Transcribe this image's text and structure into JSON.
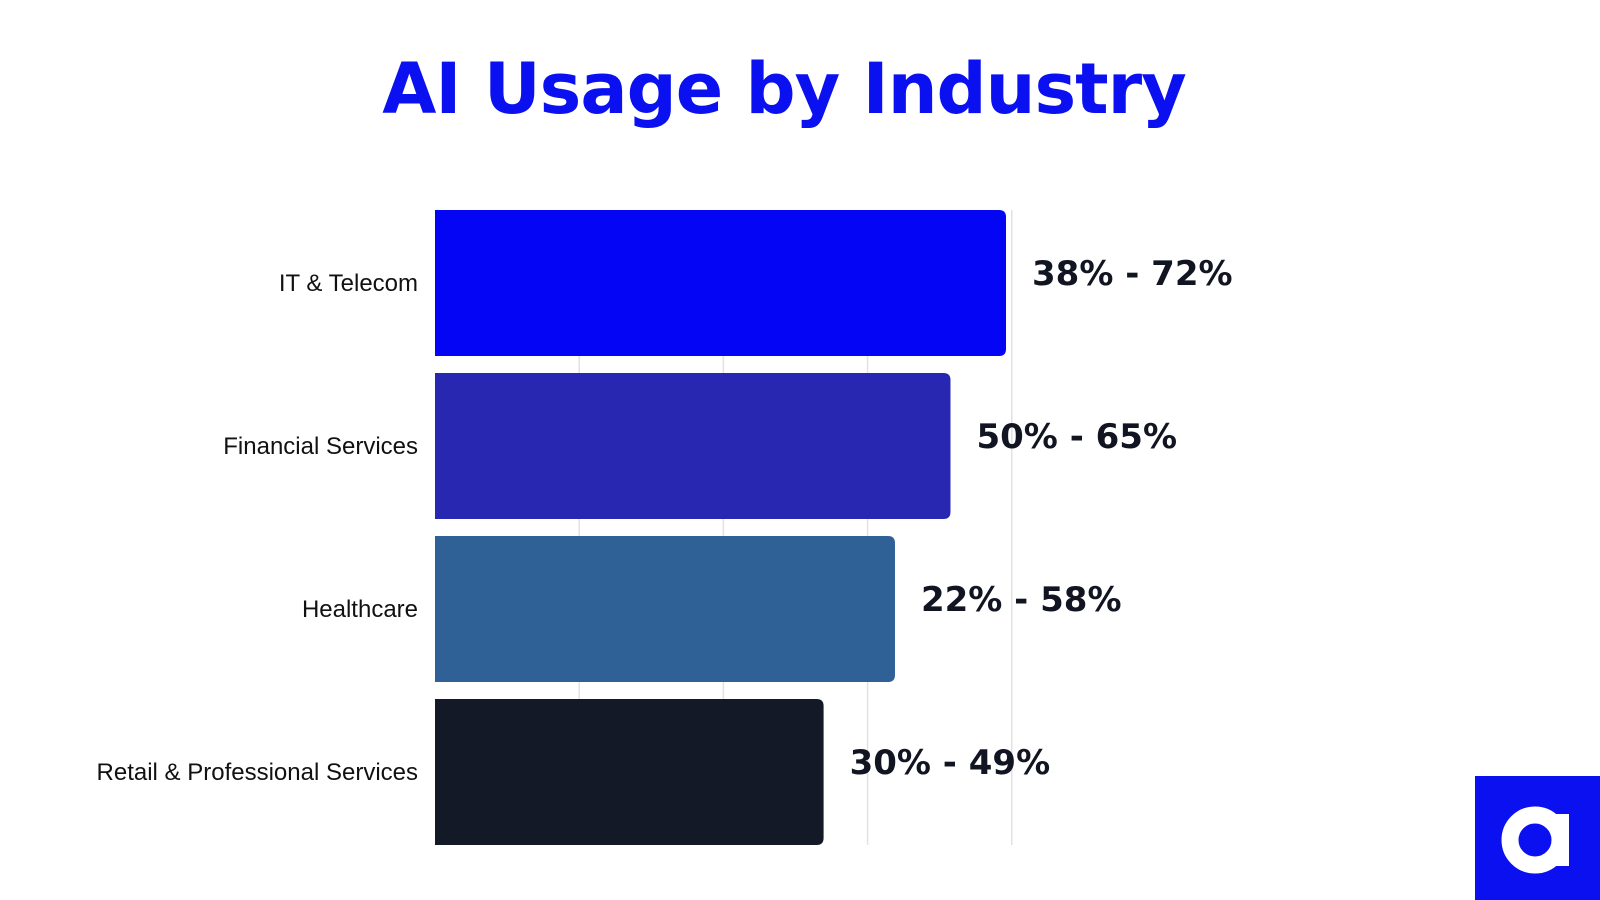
{
  "colors": {
    "title": "#0a10f0",
    "logo_background": "#0a10f0",
    "gridline": "#e2e2e2"
  },
  "logo": {
    "icon": "letter-a-logo-icon"
  },
  "chart_data": {
    "type": "bar",
    "orientation": "horizontal",
    "title": "AI Usage by Industry",
    "xlabel": "",
    "ylabel": "",
    "grid": true,
    "legend": "none",
    "xlim": [
      0,
      80
    ],
    "categories": [
      "IT & Telecom",
      "Financial Services",
      "Healthcare",
      "Retail & Professional Services"
    ],
    "ranges": [
      [
        38,
        72
      ],
      [
        50,
        65
      ],
      [
        22,
        58
      ],
      [
        30,
        49
      ]
    ],
    "values": [
      72,
      65,
      58,
      49
    ],
    "value_labels": [
      "38% - 72%",
      "50% - 65%",
      "22% - 58%",
      "30% - 49%"
    ],
    "bar_colors": [
      "#0505f5",
      "#2727b1",
      "#2f6197",
      "#131927"
    ]
  }
}
